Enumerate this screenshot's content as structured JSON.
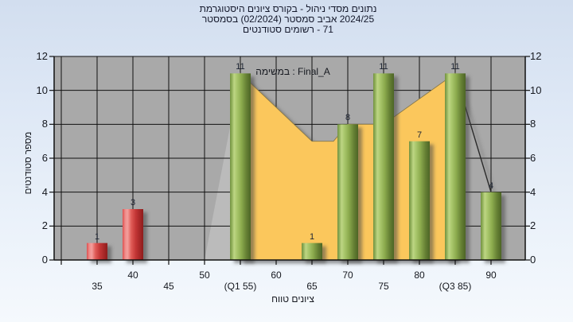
{
  "title": {
    "line1": "היסטוגרמת ציונים בקורס - ניהול מסדי נתונים",
    "line2": "בסמסטר (02/2024) סמסטר אביב 2024/25",
    "line3": "סטודנטים רשומים - 71"
  },
  "legend": {
    "label": "במשימה : Final_A"
  },
  "axes": {
    "x_title": "טווח ציונים",
    "y_title": "מספר סטודנטים"
  },
  "chart_data": {
    "type": "bar",
    "title": "היסטוגרמת ציונים בקורס - ניהול מסדי נתונים בסמסטר (02/2024) סמסטר אביב 2024/25, סטודנטים רשומים - 71",
    "legend_text": "במשימה : Final_A",
    "xlabel": "טווח ציונים",
    "ylabel": "מספר סטודנטים",
    "xlim": [
      29,
      95
    ],
    "ylim": [
      0,
      12
    ],
    "grid": true,
    "y_ticks": [
      0,
      2,
      4,
      6,
      8,
      10,
      12
    ],
    "x_grid_ticks": [
      30,
      35,
      40,
      45,
      50,
      55,
      60,
      65,
      70,
      75,
      80,
      85,
      90
    ],
    "x_labels_row1": [
      {
        "pos": 40,
        "label": "40"
      },
      {
        "pos": 50,
        "label": "50"
      },
      {
        "pos": 60,
        "label": "60"
      },
      {
        "pos": 70,
        "label": "70"
      },
      {
        "pos": 80,
        "label": "80"
      },
      {
        "pos": 90,
        "label": "90"
      }
    ],
    "x_labels_row2": [
      {
        "pos": 35,
        "label": "35"
      },
      {
        "pos": 45,
        "label": "45"
      },
      {
        "pos": 55,
        "label": "(Q1 55)"
      },
      {
        "pos": 65,
        "label": "65"
      },
      {
        "pos": 75,
        "label": "75"
      },
      {
        "pos": 85,
        "label": "(Q3 85)"
      }
    ],
    "bars": [
      {
        "grade": 35,
        "count": 1,
        "color": "red"
      },
      {
        "grade": 40,
        "count": 3,
        "color": "red"
      },
      {
        "grade": 55,
        "count": 11,
        "color": "green"
      },
      {
        "grade": 65,
        "count": 1,
        "color": "green"
      },
      {
        "grade": 70,
        "count": 8,
        "color": "green"
      },
      {
        "grade": 75,
        "count": 11,
        "color": "green"
      },
      {
        "grade": 80,
        "count": 7,
        "color": "green"
      },
      {
        "grade": 85,
        "count": 11,
        "color": "green"
      },
      {
        "grade": 90,
        "count": 4,
        "color": "green"
      }
    ],
    "area_series": {
      "points": [
        [
          55,
          11
        ],
        [
          65,
          7
        ],
        [
          68,
          7
        ],
        [
          70,
          8
        ],
        [
          75,
          8
        ],
        [
          85,
          11
        ]
      ],
      "tail_line": [
        [
          85,
          11
        ],
        [
          90,
          4
        ]
      ],
      "left_ramp": [
        [
          50,
          0
        ],
        [
          55,
          11
        ]
      ]
    },
    "colors": {
      "plot_bg": "#a9a9a9",
      "ramp_shade": "#bbbbbb",
      "area": "#fbc75c",
      "area_edge": "#8a7a4a",
      "grid_line": "#111111",
      "green_bar": "#8fae4f",
      "red_bar": "#cf3a3a"
    }
  }
}
